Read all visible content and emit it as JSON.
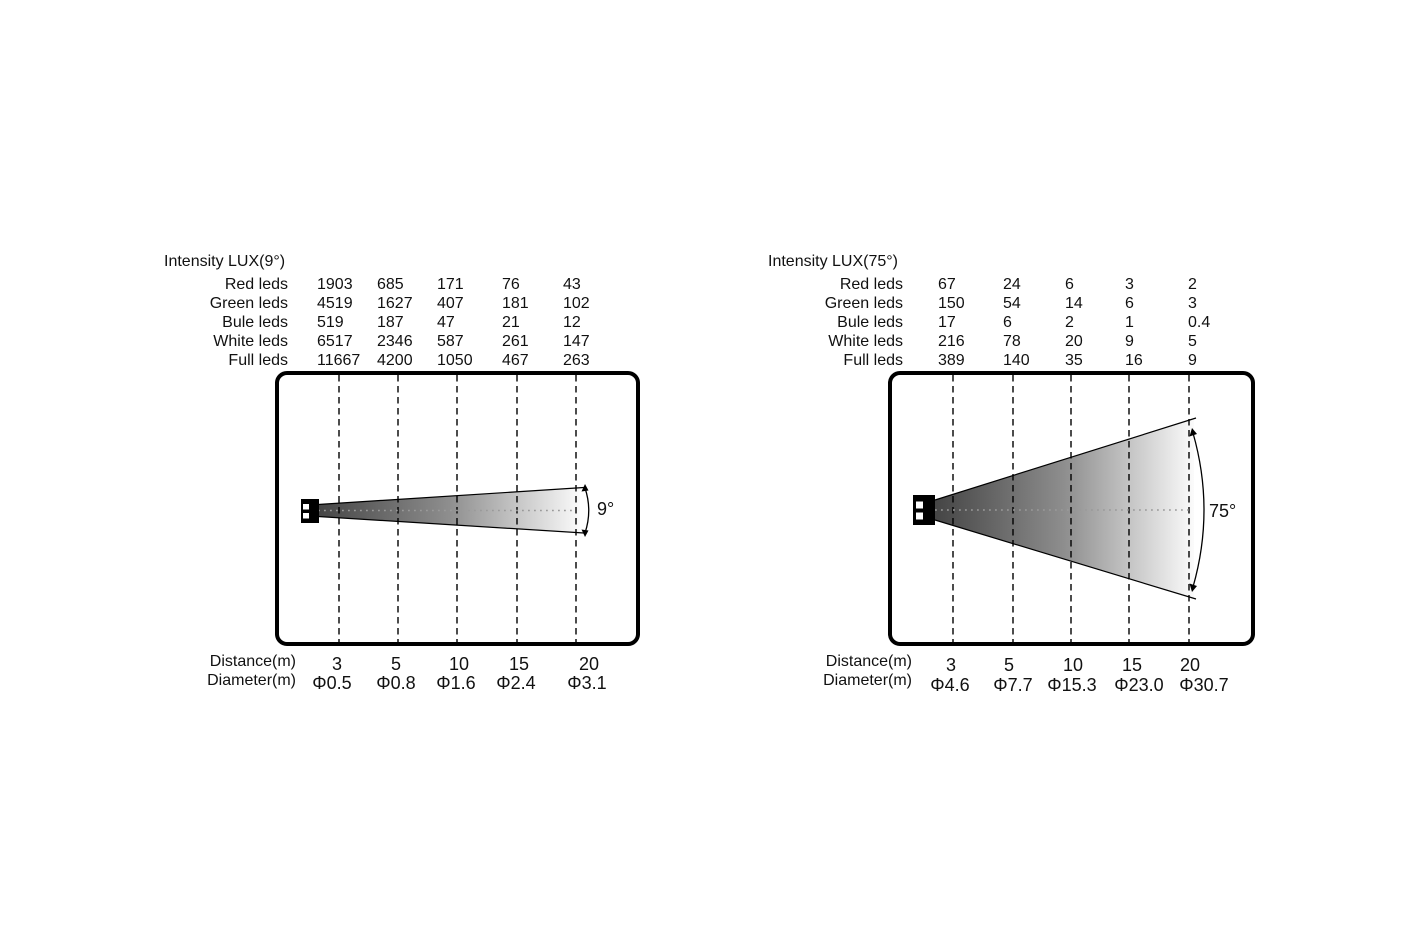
{
  "figure": {
    "background": "#ffffff",
    "text_color": "#111111",
    "beam_dark": "#454545",
    "beam_light": "#fafafa"
  },
  "diagrams": [
    {
      "title": "Intensity LUX(9°)",
      "angle_label": "9°",
      "led_rows": [
        {
          "label": "Red leds",
          "values": [
            "1903",
            "685",
            "171",
            "76",
            "43"
          ]
        },
        {
          "label": "Green leds",
          "values": [
            "4519",
            "1627",
            "407",
            "181",
            "102"
          ]
        },
        {
          "label": "Bule leds",
          "values": [
            "519",
            "187",
            "47",
            "21",
            "12"
          ]
        },
        {
          "label": "White leds",
          "values": [
            "6517",
            "2346",
            "587",
            "261",
            "147"
          ]
        },
        {
          "label": "Full leds",
          "values": [
            "11667",
            "4200",
            "1050",
            "467",
            "263"
          ]
        }
      ],
      "distance_label": "Distance(m)",
      "diameter_label": "Diameter(m)",
      "distances": [
        "3",
        "5",
        "10",
        "15",
        "20"
      ],
      "diameters": [
        "Φ0.5",
        "Φ0.8",
        "Φ1.6",
        "Φ2.4",
        "Φ3.1"
      ]
    },
    {
      "title": "Intensity LUX(75°)",
      "angle_label": "75°",
      "led_rows": [
        {
          "label": "Red leds",
          "values": [
            "67",
            "24",
            "6",
            "3",
            "2"
          ]
        },
        {
          "label": "Green leds",
          "values": [
            "150",
            "54",
            "14",
            "6",
            "3"
          ]
        },
        {
          "label": "Bule leds",
          "values": [
            "17",
            "6",
            "2",
            "1",
            "0.4"
          ]
        },
        {
          "label": "White leds",
          "values": [
            "216",
            "78",
            "20",
            "9",
            "5"
          ]
        },
        {
          "label": "Full leds",
          "values": [
            "389",
            "140",
            "35",
            "16",
            "9"
          ]
        }
      ],
      "distance_label": "Distance(m)",
      "diameter_label": "Diameter(m)",
      "distances": [
        "3",
        "5",
        "10",
        "15",
        "20"
      ],
      "diameters": [
        "Φ4.6",
        "Φ7.7",
        "Φ15.3",
        "Φ23.0",
        "Φ30.7"
      ]
    }
  ],
  "chart_data": [
    {
      "type": "table",
      "title": "Intensity LUX(9°)",
      "beam_angle_deg": 9,
      "xlabel": "Distance(m)",
      "x": [
        3,
        5,
        10,
        15,
        20
      ],
      "series": [
        {
          "name": "Red leds",
          "values": [
            1903,
            685,
            171,
            76,
            43
          ]
        },
        {
          "name": "Green leds",
          "values": [
            4519,
            1627,
            407,
            181,
            102
          ]
        },
        {
          "name": "Bule leds",
          "values": [
            519,
            187,
            47,
            21,
            12
          ]
        },
        {
          "name": "White leds",
          "values": [
            6517,
            2346,
            587,
            261,
            147
          ]
        },
        {
          "name": "Full leds",
          "values": [
            11667,
            4200,
            1050,
            467,
            263
          ]
        },
        {
          "name": "Diameter(m)",
          "values": [
            0.5,
            0.8,
            1.6,
            2.4,
            3.1
          ]
        }
      ]
    },
    {
      "type": "table",
      "title": "Intensity LUX(75°)",
      "beam_angle_deg": 75,
      "xlabel": "Distance(m)",
      "x": [
        3,
        5,
        10,
        15,
        20
      ],
      "series": [
        {
          "name": "Red leds",
          "values": [
            67,
            24,
            6,
            3,
            2
          ]
        },
        {
          "name": "Green leds",
          "values": [
            150,
            54,
            14,
            6,
            3
          ]
        },
        {
          "name": "Bule leds",
          "values": [
            17,
            6,
            2,
            1,
            0.4
          ]
        },
        {
          "name": "White leds",
          "values": [
            216,
            78,
            20,
            9,
            5
          ]
        },
        {
          "name": "Full leds",
          "values": [
            389,
            140,
            35,
            16,
            9
          ]
        },
        {
          "name": "Diameter(m)",
          "values": [
            4.6,
            7.7,
            15.3,
            23.0,
            30.7
          ]
        }
      ]
    }
  ]
}
